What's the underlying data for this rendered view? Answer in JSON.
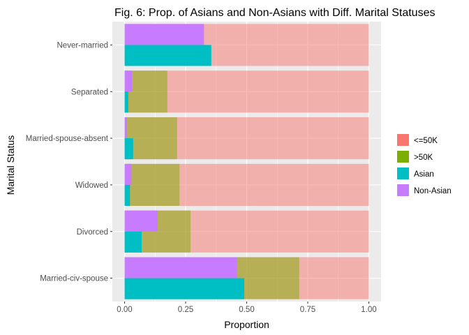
{
  "chart_data": {
    "type": "bar",
    "orientation": "horizontal",
    "title": "Fig. 6: Prop. of Asians and Non-Asians with Diff. Marital Statuses",
    "xlabel": "Proportion",
    "ylabel": "Marital Status",
    "xlim": [
      0,
      1
    ],
    "xticks": [
      0,
      0.25,
      0.5,
      0.75,
      1
    ],
    "xtick_labels": [
      "0.00",
      "0.25",
      "0.50",
      "0.75",
      "1.00"
    ],
    "categories": [
      "Never-married",
      "Separated",
      "Married-spouse-absent",
      "Widowed",
      "Divorced",
      "Married-civ-spouse"
    ],
    "income_bands": {
      "<=50K": [
        1.0,
        1.0,
        1.0,
        1.0,
        1.0,
        1.0
      ],
      ">50K": [
        0.0,
        0.175,
        0.215,
        0.225,
        0.27,
        0.715
      ]
    },
    "group_proportions": {
      "Asian": [
        0.355,
        0.015,
        0.035,
        0.022,
        0.07,
        0.49
      ],
      "Non-Asian": [
        0.325,
        0.03,
        0.01,
        0.028,
        0.135,
        0.46
      ]
    },
    "grid": true,
    "legend": {
      "placement": "right",
      "entries": [
        {
          "label": "<=50K",
          "color": "#F8766D"
        },
        {
          "label": ">50K",
          "color": "#7CAE00"
        },
        {
          "label": "Asian",
          "color": "#00BFC4"
        },
        {
          "label": "Non-Asian",
          "color": "#C77CFF"
        }
      ]
    },
    "colors": {
      "le50k": "#F8766D",
      "gt50k": "#7CAE00",
      "asian": "#00BFC4",
      "nonasian": "#C77CFF",
      "panel": "#EBEBEB",
      "grid": "#FFFFFF"
    }
  }
}
